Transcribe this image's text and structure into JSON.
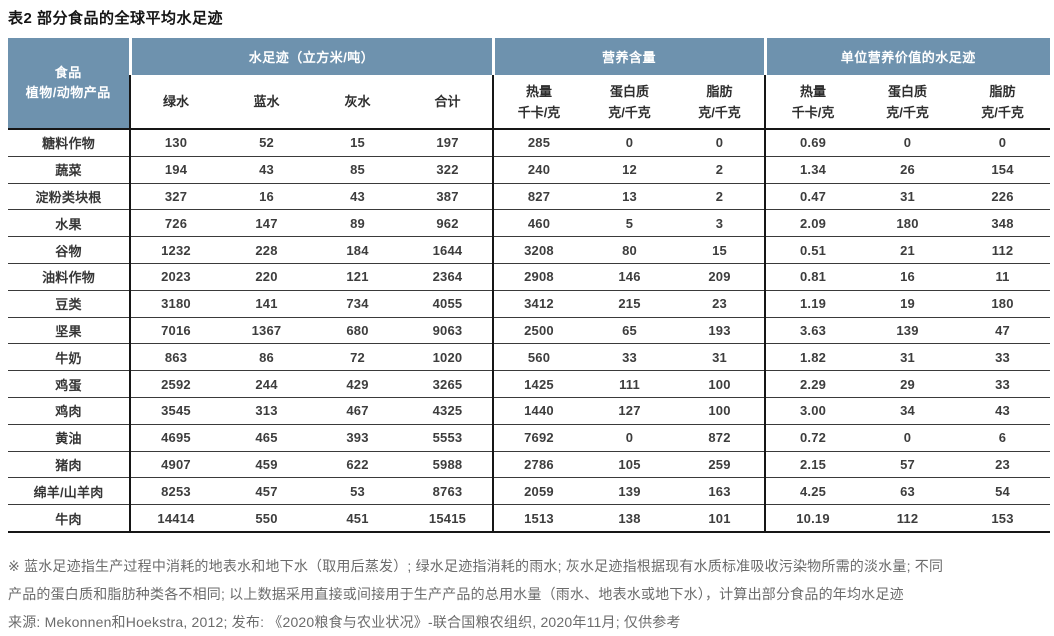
{
  "title": "表2 部分食品的全球平均水足迹",
  "colors": {
    "header_bg": "#6e92ae",
    "header_text": "#ffffff",
    "border_dark": "#161616",
    "row_border": "#3a3a3a",
    "data_text": "#3d3d3d",
    "footnote_text": "#6b6b6b"
  },
  "table": {
    "row_header": {
      "line1": "食品",
      "line2": "植物/动物产品"
    },
    "groups": [
      {
        "label": "水足迹（立方米/吨）",
        "columns": [
          {
            "l1": "绿水",
            "l2": ""
          },
          {
            "l1": "蓝水",
            "l2": ""
          },
          {
            "l1": "灰水",
            "l2": ""
          },
          {
            "l1": "合计",
            "l2": ""
          }
        ]
      },
      {
        "label": "营养含量",
        "columns": [
          {
            "l1": "热量",
            "l2": "千卡/克"
          },
          {
            "l1": "蛋白质",
            "l2": "克/千克"
          },
          {
            "l1": "脂肪",
            "l2": "克/千克"
          }
        ]
      },
      {
        "label": "单位营养价值的水足迹",
        "columns": [
          {
            "l1": "热量",
            "l2": "千卡/克"
          },
          {
            "l1": "蛋白质",
            "l2": "克/千克"
          },
          {
            "l1": "脂肪",
            "l2": "克/千克"
          }
        ]
      }
    ],
    "rows": [
      {
        "label": "糖料作物",
        "values": [
          "130",
          "52",
          "15",
          "197",
          "285",
          "0",
          "0",
          "0.69",
          "0",
          "0"
        ]
      },
      {
        "label": "蔬菜",
        "values": [
          "194",
          "43",
          "85",
          "322",
          "240",
          "12",
          "2",
          "1.34",
          "26",
          "154"
        ]
      },
      {
        "label": "淀粉类块根",
        "values": [
          "327",
          "16",
          "43",
          "387",
          "827",
          "13",
          "2",
          "0.47",
          "31",
          "226"
        ]
      },
      {
        "label": "水果",
        "values": [
          "726",
          "147",
          "89",
          "962",
          "460",
          "5",
          "3",
          "2.09",
          "180",
          "348"
        ]
      },
      {
        "label": "谷物",
        "values": [
          "1232",
          "228",
          "184",
          "1644",
          "3208",
          "80",
          "15",
          "0.51",
          "21",
          "112"
        ]
      },
      {
        "label": "油料作物",
        "values": [
          "2023",
          "220",
          "121",
          "2364",
          "2908",
          "146",
          "209",
          "0.81",
          "16",
          "11"
        ]
      },
      {
        "label": "豆类",
        "values": [
          "3180",
          "141",
          "734",
          "4055",
          "3412",
          "215",
          "23",
          "1.19",
          "19",
          "180"
        ]
      },
      {
        "label": "坚果",
        "values": [
          "7016",
          "1367",
          "680",
          "9063",
          "2500",
          "65",
          "193",
          "3.63",
          "139",
          "47"
        ]
      },
      {
        "label": "牛奶",
        "values": [
          "863",
          "86",
          "72",
          "1020",
          "560",
          "33",
          "31",
          "1.82",
          "31",
          "33"
        ]
      },
      {
        "label": "鸡蛋",
        "values": [
          "2592",
          "244",
          "429",
          "3265",
          "1425",
          "111",
          "100",
          "2.29",
          "29",
          "33"
        ]
      },
      {
        "label": "鸡肉",
        "values": [
          "3545",
          "313",
          "467",
          "4325",
          "1440",
          "127",
          "100",
          "3.00",
          "34",
          "43"
        ]
      },
      {
        "label": "黄油",
        "values": [
          "4695",
          "465",
          "393",
          "5553",
          "7692",
          "0",
          "872",
          "0.72",
          "0",
          "6"
        ]
      },
      {
        "label": "猪肉",
        "values": [
          "4907",
          "459",
          "622",
          "5988",
          "2786",
          "105",
          "259",
          "2.15",
          "57",
          "23"
        ]
      },
      {
        "label": "绵羊/山羊肉",
        "values": [
          "8253",
          "457",
          "53",
          "8763",
          "2059",
          "139",
          "163",
          "4.25",
          "63",
          "54"
        ]
      },
      {
        "label": "牛肉",
        "values": [
          "14414",
          "550",
          "451",
          "15415",
          "1513",
          "138",
          "101",
          "10.19",
          "112",
          "153"
        ]
      }
    ]
  },
  "footnotes": [
    "※ 蓝水足迹指生产过程中消耗的地表水和地下水（取用后蒸发）; 绿水足迹指消耗的雨水; 灰水足迹指根据现有水质标准吸收污染物所需的淡水量; 不同",
    "产品的蛋白质和脂肪种类各不相同; 以上数据采用直接或间接用于生产产品的总用水量（雨水、地表水或地下水），计算出部分食品的年均水足迹",
    "来源: Mekonnen和Hoekstra, 2012; 发布: 《2020粮食与农业状况》-联合国粮农组织, 2020年11月; 仅供参考"
  ]
}
